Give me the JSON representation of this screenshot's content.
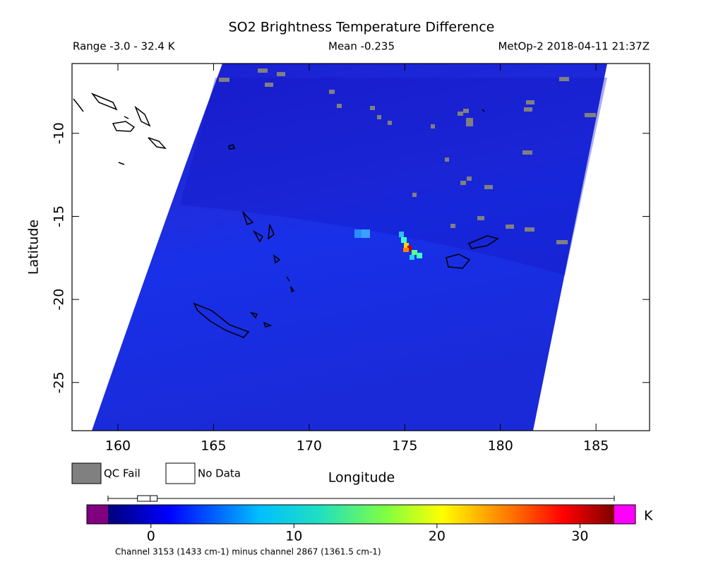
{
  "chart_data": {
    "type": "map",
    "title": "SO2 Brightness Temperature Difference",
    "subtitle_left": "Range -3.0 - 32.4 K",
    "subtitle_center": "Mean -0.235",
    "subtitle_right": "MetOp-2 2018-04-11 21:37Z",
    "x_label": "Longitude",
    "y_label": "Latitude",
    "xlim": [
      157.6,
      187.8
    ],
    "ylim": [
      -27.9,
      -5.8
    ],
    "xticks": [
      160,
      165,
      170,
      175,
      180,
      185
    ],
    "yticks": [
      -10,
      -15,
      -20,
      -25
    ],
    "legend": [
      {
        "name": "QC Fail",
        "color": "#808080"
      },
      {
        "name": "No Data",
        "color": "#ffffff"
      }
    ],
    "colorbar": {
      "lim": [
        -3.0,
        32.4
      ],
      "ticks": [
        0,
        10,
        20,
        30
      ],
      "unit": "K",
      "boxplot": {
        "min": -3.0,
        "q1": -0.94,
        "median": -0.05,
        "q3": 0.44,
        "max": 32.4
      }
    },
    "footnote": "Channel 3153 (1433 cm-1) minus channel 2867 (1361.5 cm-1)"
  }
}
